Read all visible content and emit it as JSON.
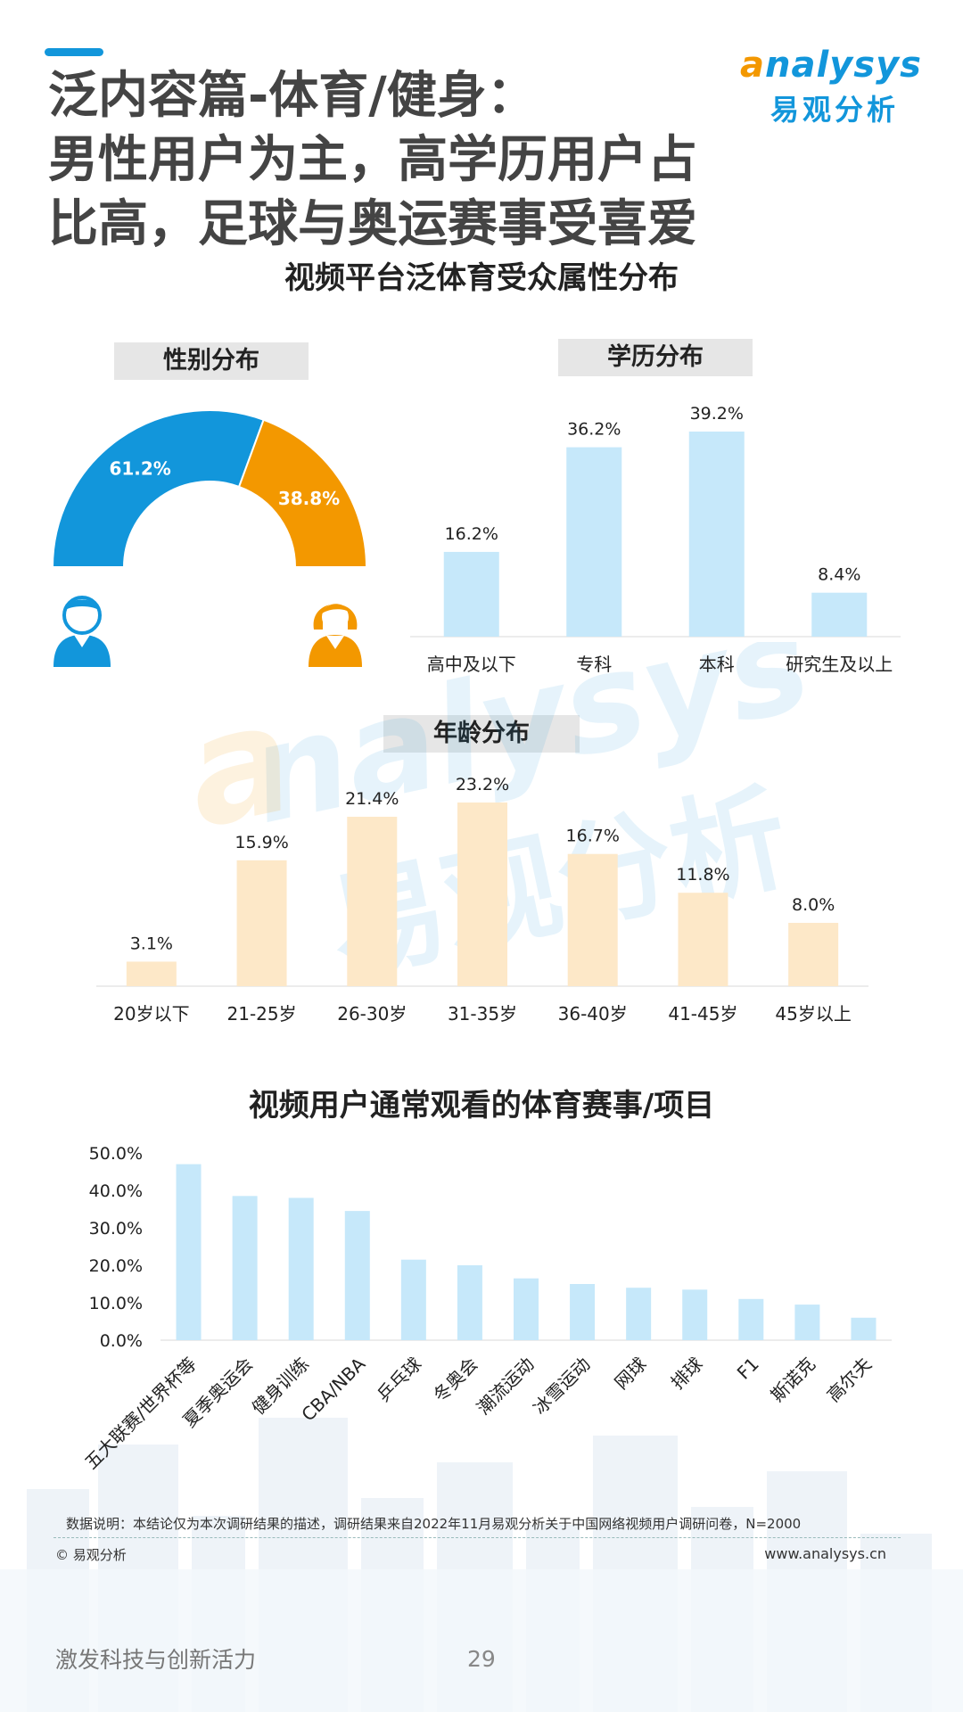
{
  "header": {
    "title_lines": [
      "泛内容篇-体育/健身：",
      "男性用户为主，高学历用户占",
      "比高，足球与奥运赛事受喜爱"
    ],
    "logo_word_a": "a",
    "logo_word_rest": "nalysys",
    "logo_cn": "易观分析"
  },
  "section1_title": "视频平台泛体育受众属性分布",
  "section2_title": "视频用户通常观看的体育赛事/项目",
  "colors": {
    "male": "#1296db",
    "female": "#f39800",
    "edu_bar": "#c6e8fa",
    "age_bar": "#fde8c8",
    "events_bar": "#c6e8fa"
  },
  "chart_data": [
    {
      "type": "pie",
      "title": "性别分布",
      "categories": [
        "男",
        "女"
      ],
      "values": [
        61.2,
        38.8
      ],
      "labels": [
        "61.2%",
        "38.8%"
      ]
    },
    {
      "type": "bar",
      "title": "学历分布",
      "categories": [
        "高中及以下",
        "专科",
        "本科",
        "研究生及以上"
      ],
      "values": [
        16.2,
        36.2,
        39.2,
        8.4
      ],
      "labels": [
        "16.2%",
        "36.2%",
        "39.2%",
        "8.4%"
      ]
    },
    {
      "type": "bar",
      "title": "年龄分布",
      "categories": [
        "20岁以下",
        "21-25岁",
        "26-30岁",
        "31-35岁",
        "36-40岁",
        "41-45岁",
        "45岁以上"
      ],
      "values": [
        3.1,
        15.9,
        21.4,
        23.2,
        16.7,
        11.8,
        8.0
      ],
      "labels": [
        "3.1%",
        "15.9%",
        "21.4%",
        "23.2%",
        "16.7%",
        "11.8%",
        "8.0%"
      ]
    },
    {
      "type": "bar",
      "title": "",
      "categories": [
        "五大联赛/世界杯等",
        "夏季奥运会",
        "健身训练",
        "CBA/NBA",
        "乒乓球",
        "冬奥会",
        "潮流运动",
        "冰雪运动",
        "网球",
        "排球",
        "F1",
        "斯诺克",
        "高尔夫"
      ],
      "values": [
        47.0,
        38.5,
        38.0,
        34.5,
        21.5,
        20.0,
        16.5,
        15.0,
        14.0,
        13.5,
        11.0,
        9.5,
        6.0
      ],
      "yticks": [
        "0.0%",
        "10.0%",
        "20.0%",
        "30.0%",
        "40.0%",
        "50.0%"
      ],
      "ylim": [
        0,
        50
      ]
    }
  ],
  "footer": {
    "note": "数据说明：本结论仅为本次调研结果的描述，调研结果来自2022年11月易观分析关于中国网络视频用户调研问卷，N=2000",
    "copyright": "© 易观分析",
    "website": "www.analysys.cn",
    "slogan": "激发科技与创新活力",
    "page": "29"
  }
}
